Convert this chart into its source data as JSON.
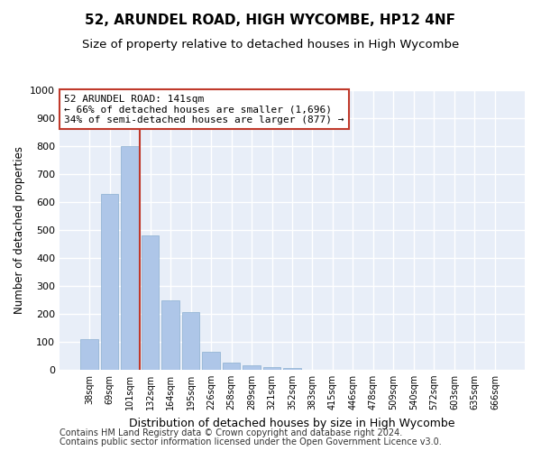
{
  "title": "52, ARUNDEL ROAD, HIGH WYCOMBE, HP12 4NF",
  "subtitle": "Size of property relative to detached houses in High Wycombe",
  "xlabel": "Distribution of detached houses by size in High Wycombe",
  "ylabel": "Number of detached properties",
  "bar_labels": [
    "38sqm",
    "69sqm",
    "101sqm",
    "132sqm",
    "164sqm",
    "195sqm",
    "226sqm",
    "258sqm",
    "289sqm",
    "321sqm",
    "352sqm",
    "383sqm",
    "415sqm",
    "446sqm",
    "478sqm",
    "509sqm",
    "540sqm",
    "572sqm",
    "603sqm",
    "635sqm",
    "666sqm"
  ],
  "bar_values": [
    110,
    630,
    800,
    480,
    250,
    205,
    63,
    25,
    15,
    10,
    5,
    0,
    0,
    0,
    0,
    0,
    0,
    0,
    0,
    0,
    0
  ],
  "bar_color": "#aec6e8",
  "bar_edge_color": "#8aafd0",
  "vline_color": "#c0392b",
  "annotation_line1": "52 ARUNDEL ROAD: 141sqm",
  "annotation_line2": "← 66% of detached houses are smaller (1,696)",
  "annotation_line3": "34% of semi-detached houses are larger (877) →",
  "annotation_box_color": "#c0392b",
  "ylim": [
    0,
    1000
  ],
  "yticks": [
    0,
    100,
    200,
    300,
    400,
    500,
    600,
    700,
    800,
    900,
    1000
  ],
  "bg_color": "#e8eef8",
  "grid_color": "#ffffff",
  "footer_line1": "Contains HM Land Registry data © Crown copyright and database right 2024.",
  "footer_line2": "Contains public sector information licensed under the Open Government Licence v3.0.",
  "title_fontsize": 11,
  "subtitle_fontsize": 9.5
}
